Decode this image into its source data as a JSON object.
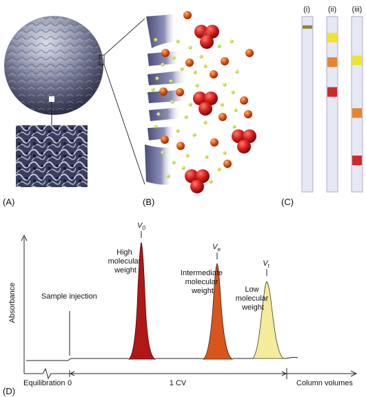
{
  "panels": {
    "a": "(A)",
    "b": "(B)",
    "c": "(C)",
    "d": "(D)"
  },
  "columns": [
    {
      "label": "(i)",
      "bands": [
        {
          "color": "#8a7a20",
          "pos": 0.06
        }
      ]
    },
    {
      "label": "(ii)",
      "bands": [
        {
          "color": "#f2e21a",
          "pos": 0.12
        },
        {
          "color": "#e47a1a",
          "pos": 0.26
        },
        {
          "color": "#cc1414",
          "pos": 0.43
        }
      ]
    },
    {
      "label": "(iii)",
      "bands": [
        {
          "color": "#f2e21a",
          "pos": 0.25
        },
        {
          "color": "#e47a1a",
          "pos": 0.55
        },
        {
          "color": "#cc1414",
          "pos": 0.82
        }
      ]
    }
  ],
  "chromatogram": {
    "y_axis": "Absorbance",
    "sample_injection": "Sample injection",
    "equilibration": "Equilibration",
    "zero": "0",
    "cv": "1 CV",
    "column_volumes": "Column volumes",
    "peaks": [
      {
        "v": "V",
        "sub": "0",
        "label": [
          "High",
          "molecular",
          "weight"
        ],
        "color": "#b01818"
      },
      {
        "v": "V",
        "sub": "e",
        "label": [
          "Intermediate",
          "molecular",
          "weight"
        ],
        "color": "#d8561e"
      },
      {
        "v": "V",
        "sub": "t",
        "label": [
          "Low",
          "molecular",
          "weight"
        ],
        "color": "#f4ec9a"
      }
    ]
  }
}
